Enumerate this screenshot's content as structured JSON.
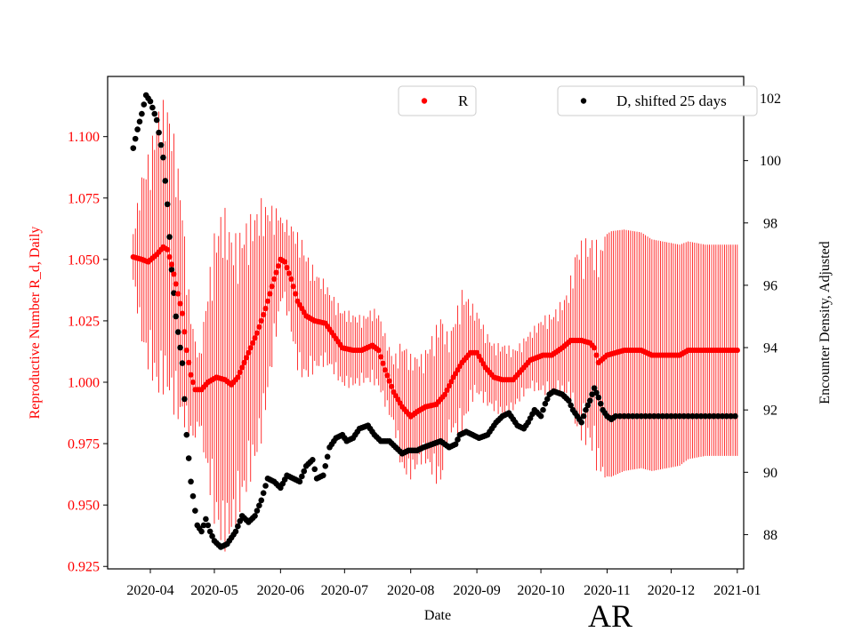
{
  "chart_data": {
    "type": "scatter",
    "state_label": "AR",
    "xlabel": "Date",
    "ylabel_left": "Reproductive Number R_d, Daily",
    "ylabel_right": "Encounter Density, Adjusted",
    "x_tick_labels": [
      "2020-04",
      "2020-05",
      "2020-06",
      "2020-07",
      "2020-08",
      "2020-09",
      "2020-10",
      "2020-11",
      "2020-12",
      "2021-01"
    ],
    "x_tick_days": [
      0,
      30,
      61,
      91,
      122,
      153,
      183,
      214,
      244,
      275
    ],
    "x_range_days": [
      -20,
      278
    ],
    "y_left_range": [
      0.924,
      1.1245
    ],
    "y_left_ticks": [
      "0.925",
      "0.950",
      "0.975",
      "1.000",
      "1.025",
      "1.050",
      "1.075",
      "1.100"
    ],
    "y_right_range": [
      86.9,
      102.7
    ],
    "y_right_ticks": [
      "88",
      "90",
      "92",
      "94",
      "96",
      "98",
      "100",
      "102"
    ],
    "colors": {
      "R": "#ff0000",
      "D": "#000000"
    },
    "series": [
      {
        "name": "R",
        "axis": "left",
        "marker": "dot",
        "error_bars": true,
        "day_range": [
          -8,
          275
        ],
        "keypoints": [
          [
            -8,
            1.051
          ],
          [
            -4,
            1.05
          ],
          [
            -1,
            1.049
          ],
          [
            3,
            1.052
          ],
          [
            6,
            1.055
          ],
          [
            8,
            1.054
          ],
          [
            10,
            1.048
          ],
          [
            12,
            1.04
          ],
          [
            15,
            1.028
          ],
          [
            17,
            1.013
          ],
          [
            19,
            1.003
          ],
          [
            21,
            0.997
          ],
          [
            24,
            0.997
          ],
          [
            27,
            1.0
          ],
          [
            31,
            1.002
          ],
          [
            35,
            1.001
          ],
          [
            38,
            0.999
          ],
          [
            41,
            1.002
          ],
          [
            45,
            1.01
          ],
          [
            50,
            1.02
          ],
          [
            54,
            1.03
          ],
          [
            58,
            1.042
          ],
          [
            61,
            1.05
          ],
          [
            63,
            1.049
          ],
          [
            66,
            1.042
          ],
          [
            69,
            1.033
          ],
          [
            73,
            1.027
          ],
          [
            77,
            1.025
          ],
          [
            82,
            1.024
          ],
          [
            86,
            1.019
          ],
          [
            90,
            1.014
          ],
          [
            95,
            1.013
          ],
          [
            99,
            1.013
          ],
          [
            104,
            1.015
          ],
          [
            107,
            1.013
          ],
          [
            110,
            1.005
          ],
          [
            114,
            0.996
          ],
          [
            118,
            0.99
          ],
          [
            122,
            0.986
          ],
          [
            125,
            0.988
          ],
          [
            129,
            0.99
          ],
          [
            134,
            0.991
          ],
          [
            138,
            0.995
          ],
          [
            142,
            1.002
          ],
          [
            146,
            1.008
          ],
          [
            150,
            1.012
          ],
          [
            153,
            1.012
          ],
          [
            157,
            1.006
          ],
          [
            161,
            1.002
          ],
          [
            165,
            1.001
          ],
          [
            170,
            1.001
          ],
          [
            174,
            1.005
          ],
          [
            178,
            1.009
          ],
          [
            184,
            1.011
          ],
          [
            188,
            1.011
          ],
          [
            193,
            1.014
          ],
          [
            197,
            1.017
          ],
          [
            202,
            1.017
          ],
          [
            206,
            1.016
          ],
          [
            208,
            1.014
          ],
          [
            210,
            1.008
          ],
          [
            214,
            1.011
          ],
          [
            218,
            1.012
          ],
          [
            222,
            1.013
          ],
          [
            226,
            1.013
          ],
          [
            230,
            1.013
          ],
          [
            235,
            1.011
          ],
          [
            239,
            1.011
          ],
          [
            244,
            1.011
          ],
          [
            248,
            1.011
          ],
          [
            252,
            1.013
          ],
          [
            255,
            1.013
          ]
        ],
        "error_halfwidth": [
          [
            -8,
            0.01
          ],
          [
            -4,
            0.035
          ],
          [
            4,
            0.06
          ],
          [
            10,
            0.06
          ],
          [
            14,
            0.05
          ],
          [
            18,
            0.03
          ],
          [
            23,
            0.015
          ],
          [
            30,
            0.06
          ],
          [
            34,
            0.072
          ],
          [
            40,
            0.06
          ],
          [
            48,
            0.054
          ],
          [
            52,
            0.05
          ],
          [
            58,
            0.03
          ],
          [
            62,
            0.016
          ],
          [
            70,
            0.03
          ],
          [
            78,
            0.02
          ],
          [
            84,
            0.016
          ],
          [
            92,
            0.016
          ],
          [
            100,
            0.014
          ],
          [
            106,
            0.016
          ],
          [
            114,
            0.014
          ],
          [
            118,
            0.028
          ],
          [
            128,
            0.022
          ],
          [
            136,
            0.036
          ],
          [
            140,
            0.02
          ],
          [
            146,
            0.03
          ],
          [
            152,
            0.018
          ],
          [
            160,
            0.014
          ],
          [
            166,
            0.015
          ],
          [
            172,
            0.012
          ],
          [
            178,
            0.012
          ],
          [
            184,
            0.016
          ],
          [
            190,
            0.018
          ],
          [
            196,
            0.022
          ],
          [
            200,
            0.04
          ],
          [
            206,
            0.044
          ],
          [
            210,
            0.048
          ],
          [
            216,
            0.05
          ],
          [
            230,
            0.048
          ],
          [
            260,
            0.043
          ]
        ]
      },
      {
        "name": "D, shifted 25 days",
        "axis": "right",
        "marker": "dot",
        "day_range": [
          -8,
          275
        ],
        "keypoints": [
          [
            -8,
            100.4
          ],
          [
            -6,
            101.0
          ],
          [
            -4,
            101.5
          ],
          [
            -2,
            102.1
          ],
          [
            0,
            101.9
          ],
          [
            3,
            101.3
          ],
          [
            6,
            100.1
          ],
          [
            8,
            98.6
          ],
          [
            10,
            96.5
          ],
          [
            12,
            95.0
          ],
          [
            15,
            93.5
          ],
          [
            17,
            91.2
          ],
          [
            19,
            89.7
          ],
          [
            22,
            88.3
          ],
          [
            24,
            88.1
          ],
          [
            26,
            88.5
          ],
          [
            28,
            88.1
          ],
          [
            30,
            87.8
          ],
          [
            33,
            87.6
          ],
          [
            36,
            87.7
          ],
          [
            38,
            87.9
          ],
          [
            40,
            88.1
          ],
          [
            43,
            88.6
          ],
          [
            46,
            88.4
          ],
          [
            49,
            88.6
          ],
          [
            52,
            89.1
          ],
          [
            55,
            89.8
          ],
          [
            58,
            89.7
          ],
          [
            61,
            89.5
          ],
          [
            64,
            89.9
          ],
          [
            67,
            89.8
          ],
          [
            70,
            89.7
          ],
          [
            73,
            90.2
          ],
          [
            76,
            90.4
          ],
          [
            78,
            89.8
          ],
          [
            81,
            89.9
          ],
          [
            84,
            90.8
          ],
          [
            87,
            91.1
          ],
          [
            90,
            91.2
          ],
          [
            92,
            91.0
          ],
          [
            95,
            91.1
          ],
          [
            98,
            91.4
          ],
          [
            102,
            91.5
          ],
          [
            105,
            91.2
          ],
          [
            108,
            91.0
          ],
          [
            112,
            91.0
          ],
          [
            115,
            90.8
          ],
          [
            118,
            90.6
          ],
          [
            121,
            90.7
          ],
          [
            125,
            90.7
          ],
          [
            128,
            90.8
          ],
          [
            132,
            90.9
          ],
          [
            136,
            91.0
          ],
          [
            140,
            90.8
          ],
          [
            143,
            90.9
          ],
          [
            145,
            91.2
          ],
          [
            148,
            91.3
          ],
          [
            151,
            91.2
          ],
          [
            154,
            91.1
          ],
          [
            158,
            91.2
          ],
          [
            162,
            91.6
          ],
          [
            165,
            91.8
          ],
          [
            168,
            91.9
          ],
          [
            172,
            91.5
          ],
          [
            175,
            91.4
          ],
          [
            177,
            91.6
          ],
          [
            180,
            92.0
          ],
          [
            183,
            91.8
          ],
          [
            185,
            92.2
          ],
          [
            187,
            92.5
          ],
          [
            189,
            92.6
          ],
          [
            193,
            92.5
          ],
          [
            196,
            92.3
          ],
          [
            198,
            92.0
          ],
          [
            200,
            91.8
          ],
          [
            202,
            91.6
          ],
          [
            204,
            92.0
          ],
          [
            206,
            92.3
          ],
          [
            208,
            92.7
          ],
          [
            210,
            92.4
          ],
          [
            212,
            92.0
          ],
          [
            214,
            91.8
          ],
          [
            216,
            91.7
          ],
          [
            218,
            91.8
          ],
          [
            222,
            91.8
          ],
          [
            230,
            91.8
          ],
          [
            260,
            91.8
          ]
        ]
      }
    ],
    "legend": [
      {
        "label": "R",
        "placement": "top-center"
      },
      {
        "label": "D, shifted 25 days",
        "placement": "top-right"
      }
    ]
  }
}
